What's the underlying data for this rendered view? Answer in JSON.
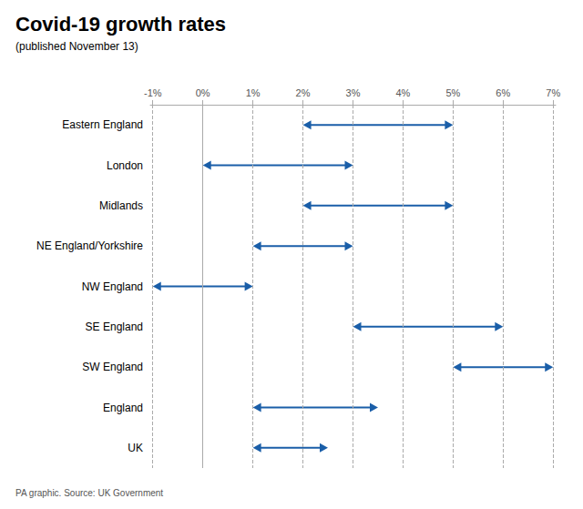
{
  "chart_data": {
    "type": "range",
    "orientation": "horizontal",
    "title": "Covid-19 growth rates",
    "subtitle": "(published November 13)",
    "footer": "PA graphic. Source: UK Government",
    "categories": [
      "Eastern England",
      "London",
      "Midlands",
      "NE England/Yorkshire",
      "NW England",
      "SE England",
      "SW England",
      "England",
      "UK"
    ],
    "low": [
      2.0,
      0.0,
      2.0,
      1.0,
      -1.0,
      3.0,
      5.0,
      1.0,
      1.0
    ],
    "high": [
      5.0,
      3.0,
      5.0,
      3.0,
      1.0,
      6.0,
      7.0,
      3.5,
      2.5
    ],
    "color": "#1a5ea8",
    "xlim": [
      -1.05,
      7.05
    ],
    "xticks": [
      {
        "value": -1,
        "label": "-1%"
      },
      {
        "value": 0,
        "label": "0%"
      },
      {
        "value": 1,
        "label": "1%"
      },
      {
        "value": 2,
        "label": "2%"
      },
      {
        "value": 3,
        "label": "3%"
      },
      {
        "value": 4,
        "label": "4%"
      },
      {
        "value": 5,
        "label": "5%"
      },
      {
        "value": 6,
        "label": "6%"
      },
      {
        "value": 7,
        "label": "7%"
      }
    ],
    "grid": true
  }
}
